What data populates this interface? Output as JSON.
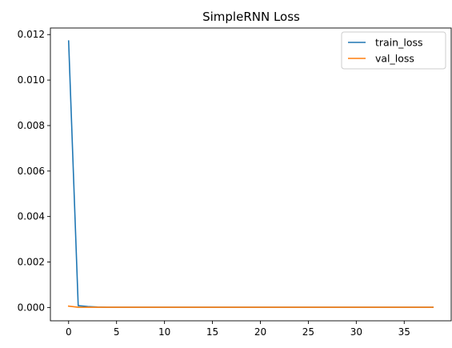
{
  "chart_data": {
    "type": "line",
    "title": "SimpleRNN Loss",
    "xlabel": "",
    "ylabel": "",
    "xlim": [
      -1.9,
      39.9
    ],
    "ylim": [
      -0.000585,
      0.01229
    ],
    "xticks": [
      0,
      5,
      10,
      15,
      20,
      25,
      30,
      35
    ],
    "yticks": [
      0.0,
      0.002,
      0.004,
      0.006,
      0.008,
      0.01,
      0.012
    ],
    "ytick_labels": [
      "0.000",
      "0.002",
      "0.004",
      "0.006",
      "0.008",
      "0.010",
      "0.012"
    ],
    "grid": false,
    "legend_position": "top-right",
    "x": [
      0,
      1,
      2,
      3,
      4,
      5,
      6,
      7,
      8,
      9,
      10,
      11,
      12,
      13,
      14,
      15,
      16,
      17,
      18,
      19,
      20,
      21,
      22,
      23,
      24,
      25,
      26,
      27,
      28,
      29,
      30,
      31,
      32,
      33,
      34,
      35,
      36,
      37,
      38
    ],
    "series": [
      {
        "name": "train_loss",
        "color": "#1f77b4",
        "values": [
          0.01172,
          8e-05,
          4e-05,
          2e-05,
          1e-05,
          1e-05,
          1e-05,
          1e-05,
          1e-05,
          1e-05,
          1e-05,
          1e-05,
          1e-05,
          1e-05,
          1e-05,
          1e-05,
          1e-05,
          1e-05,
          1e-05,
          1e-05,
          1e-05,
          1e-05,
          1e-05,
          1e-05,
          1e-05,
          1e-05,
          1e-05,
          1e-05,
          1e-05,
          1e-05,
          1e-05,
          1e-05,
          1e-05,
          1e-05,
          1e-05,
          1e-05,
          1e-05,
          1e-05,
          1e-05
        ]
      },
      {
        "name": "val_loss",
        "color": "#ff7f0e",
        "values": [
          6e-05,
          1e-05,
          1e-05,
          1e-05,
          1e-05,
          1e-05,
          1e-05,
          1e-05,
          1e-05,
          1e-05,
          1e-05,
          1e-05,
          1e-05,
          1e-05,
          1e-05,
          1e-05,
          1e-05,
          1e-05,
          1e-05,
          1e-05,
          1e-05,
          1e-05,
          1e-05,
          1e-05,
          1e-05,
          1e-05,
          1e-05,
          1e-05,
          1e-05,
          1e-05,
          1e-05,
          1e-05,
          1e-05,
          1e-05,
          1e-05,
          1e-05,
          1e-05,
          1e-05,
          1e-05
        ]
      }
    ]
  }
}
